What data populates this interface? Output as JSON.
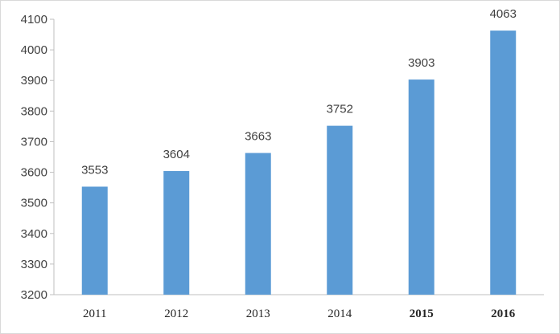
{
  "chart_data": {
    "type": "bar",
    "categories": [
      "2011",
      "2012",
      "2013",
      "2014",
      "2015",
      "2016"
    ],
    "values": [
      3553,
      3604,
      3663,
      3752,
      3903,
      4063
    ],
    "data_labels": [
      "3553",
      "3604",
      "3663",
      "3752",
      "3903",
      "4063"
    ],
    "yticks": [
      "3200",
      "3300",
      "3400",
      "3500",
      "3600",
      "3700",
      "3800",
      "3900",
      "4000",
      "4100"
    ],
    "ylim": [
      3200,
      4100
    ],
    "title": "",
    "xlabel": "",
    "ylabel": "",
    "grid": false,
    "legend": "none",
    "bar_color": "#5b9bd5",
    "bold_categories": [
      "2015",
      "2016"
    ]
  }
}
